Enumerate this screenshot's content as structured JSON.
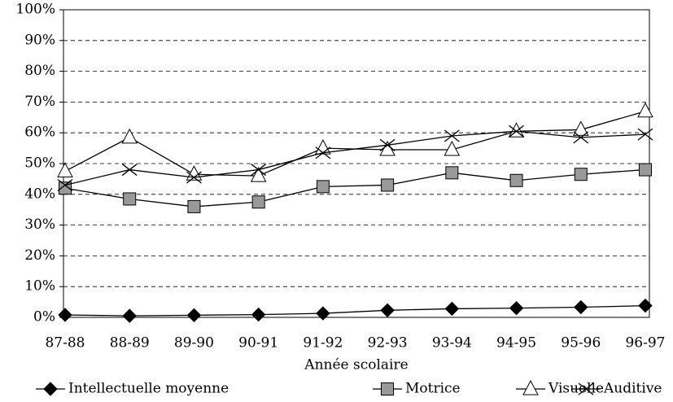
{
  "chart_data": {
    "type": "line",
    "xlabel": "Année scolaire",
    "categories": [
      "87-88",
      "88-89",
      "89-90",
      "90-91",
      "91-92",
      "92-93",
      "93-94",
      "94-95",
      "95-96",
      "96-97"
    ],
    "series": [
      {
        "name": "Intellectuelle moyenne",
        "color": "#000000",
        "marker": "diamond",
        "values": [
          0.8,
          0.5,
          0.7,
          0.9,
          1.3,
          2.3,
          2.8,
          3.0,
          3.3,
          3.8
        ]
      },
      {
        "name": "Motrice",
        "color": "#999999",
        "marker": "square",
        "values": [
          42,
          38.5,
          36,
          37.5,
          42.5,
          43,
          47,
          44.5,
          46.5,
          48
        ]
      },
      {
        "name": "Visuelle",
        "color": "#ffffff",
        "marker": "triangle",
        "values": [
          47.5,
          58.5,
          46.5,
          46,
          55,
          54.5,
          54.5,
          60.5,
          61,
          67
        ]
      },
      {
        "name": "Auditive",
        "color": "#000000",
        "marker": "x",
        "values": [
          43,
          48,
          45.5,
          48,
          53.5,
          56,
          59,
          60.5,
          58.5,
          59.5
        ]
      }
    ],
    "ylim": [
      0,
      100
    ],
    "yticks": [
      {
        "value": 0,
        "label": "0%"
      },
      {
        "value": 10,
        "label": "10%"
      },
      {
        "value": 20,
        "label": "20%"
      },
      {
        "value": 30,
        "label": "30%"
      },
      {
        "value": 40,
        "label": "40%"
      },
      {
        "value": 50,
        "label": "50%"
      },
      {
        "value": 60,
        "label": "60%"
      },
      {
        "value": 70,
        "label": "70%"
      },
      {
        "value": 80,
        "label": "80%"
      },
      {
        "value": 90,
        "label": "90%"
      },
      {
        "value": 100,
        "label": "100%"
      }
    ],
    "grid": true,
    "legend": "bottom"
  }
}
